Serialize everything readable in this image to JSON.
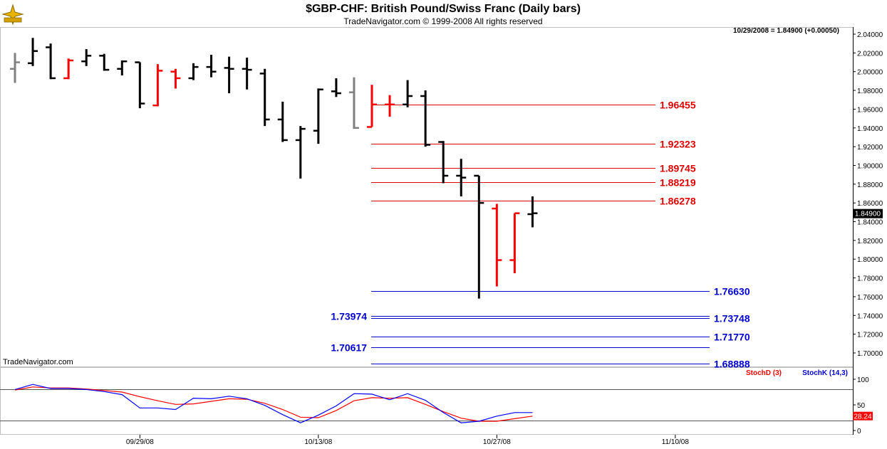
{
  "header": {
    "title": "$GBP-CHF:  British Pound/Swiss Franc  (Daily bars)",
    "subtitle": "TradeNavigator.com © 1999-2008 All rights reserved",
    "logo_icon": "gold-compass-logo-icon"
  },
  "readout": "10/29/2008 = 1.84900 (+0.00050)",
  "watermark": "TradeNavigator.com",
  "last_price_label": "1.84900",
  "stoch_value_label": "28.24",
  "colors": {
    "up": "#000000",
    "down": "#ff0000",
    "neutral": "#808080",
    "resistance": "#dd0000",
    "support": "#0000cc",
    "stoch_d": "#ff0000",
    "stoch_k": "#0000ff"
  },
  "chart_data": [
    {
      "type": "ohlc",
      "y_axis_ticks": [
        "2.04000",
        "2.02000",
        "2.00000",
        "1.98000",
        "1.96000",
        "1.94000",
        "1.92000",
        "1.90000",
        "1.88000",
        "1.86000",
        "1.84000",
        "1.82000",
        "1.80000",
        "1.78000",
        "1.76000",
        "1.74000",
        "1.72000",
        "1.70000"
      ],
      "ylim": [
        1.69,
        2.045
      ],
      "x_tick_labels": [
        {
          "label": "09/29/08",
          "bar": 7
        },
        {
          "label": "10/13/08",
          "bar": 17
        },
        {
          "label": "10/27/08",
          "bar": 27
        },
        {
          "label": "11/10/08",
          "bar": 37
        }
      ],
      "bars": [
        {
          "o": 2.003,
          "h": 2.02,
          "l": 1.988,
          "c": 2.01,
          "col": "neutral"
        },
        {
          "o": 2.009,
          "h": 2.036,
          "l": 2.006,
          "c": 2.022,
          "col": "up"
        },
        {
          "o": 2.026,
          "h": 2.03,
          "l": 1.992,
          "c": 1.993,
          "col": "up"
        },
        {
          "o": 1.993,
          "h": 2.014,
          "l": 1.992,
          "c": 2.012,
          "col": "down"
        },
        {
          "o": 2.011,
          "h": 2.024,
          "l": 2.006,
          "c": 2.017,
          "col": "up"
        },
        {
          "o": 2.017,
          "h": 2.019,
          "l": 2.001,
          "c": 2.002,
          "col": "up"
        },
        {
          "o": 2.003,
          "h": 2.012,
          "l": 1.996,
          "c": 2.011,
          "col": "up"
        },
        {
          "o": 2.01,
          "h": 2.01,
          "l": 1.961,
          "c": 1.966,
          "col": "up"
        },
        {
          "o": 1.964,
          "h": 2.008,
          "l": 1.963,
          "c": 2.001,
          "col": "down"
        },
        {
          "o": 2.0,
          "h": 2.003,
          "l": 1.982,
          "c": 1.993,
          "col": "down"
        },
        {
          "o": 1.993,
          "h": 2.009,
          "l": 1.991,
          "c": 2.005,
          "col": "up"
        },
        {
          "o": 2.005,
          "h": 2.018,
          "l": 1.994,
          "c": 2.0,
          "col": "up"
        },
        {
          "o": 2.004,
          "h": 2.016,
          "l": 1.977,
          "c": 2.003,
          "col": "up"
        },
        {
          "o": 2.003,
          "h": 2.015,
          "l": 1.981,
          "c": 2.002,
          "col": "up"
        },
        {
          "o": 1.998,
          "h": 2.003,
          "l": 1.942,
          "c": 1.949,
          "col": "up"
        },
        {
          "o": 1.949,
          "h": 1.968,
          "l": 1.925,
          "c": 1.927,
          "col": "up"
        },
        {
          "o": 1.927,
          "h": 1.942,
          "l": 1.886,
          "c": 1.939,
          "col": "up"
        },
        {
          "o": 1.937,
          "h": 1.982,
          "l": 1.923,
          "c": 1.981,
          "col": "up"
        },
        {
          "o": 1.979,
          "h": 1.993,
          "l": 1.973,
          "c": 1.977,
          "col": "up"
        },
        {
          "o": 1.978,
          "h": 1.994,
          "l": 1.939,
          "c": 1.94,
          "col": "neutral"
        },
        {
          "o": 1.941,
          "h": 1.986,
          "l": 1.941,
          "c": 1.965,
          "col": "down"
        },
        {
          "o": 1.965,
          "h": 1.975,
          "l": 1.952,
          "c": 1.965,
          "col": "down"
        },
        {
          "o": 1.965,
          "h": 1.991,
          "l": 1.962,
          "c": 1.974,
          "col": "up"
        },
        {
          "o": 1.974,
          "h": 1.98,
          "l": 1.92,
          "c": 1.922,
          "col": "up"
        },
        {
          "o": 1.925,
          "h": 1.926,
          "l": 1.881,
          "c": 1.889,
          "col": "up"
        },
        {
          "o": 1.889,
          "h": 1.907,
          "l": 1.867,
          "c": 1.887,
          "col": "up"
        },
        {
          "o": 1.889,
          "h": 1.889,
          "l": 1.758,
          "c": 1.86,
          "col": "up"
        },
        {
          "o": 1.854,
          "h": 1.859,
          "l": 1.771,
          "c": 1.799,
          "col": "down"
        },
        {
          "o": 1.799,
          "h": 1.849,
          "l": 1.785,
          "c": 1.849,
          "col": "down"
        },
        {
          "o": 1.848,
          "h": 1.867,
          "l": 1.834,
          "c": 1.849,
          "col": "up"
        }
      ],
      "levels": [
        {
          "value": 1.96455,
          "label": "1.96455",
          "kind": "resistance"
        },
        {
          "value": 1.92323,
          "label": "1.92323",
          "kind": "resistance"
        },
        {
          "value": 1.89745,
          "label": "1.89745",
          "kind": "resistance"
        },
        {
          "value": 1.88219,
          "label": "1.88219",
          "kind": "resistance"
        },
        {
          "value": 1.86278,
          "label": "1.86278",
          "kind": "resistance"
        },
        {
          "value": 1.7663,
          "label": "1.76630",
          "kind": "support"
        },
        {
          "value": 1.73974,
          "label": "1.73974",
          "kind": "support",
          "label_side": "left"
        },
        {
          "value": 1.73748,
          "label": "1.73748",
          "kind": "support"
        },
        {
          "value": 1.7177,
          "label": "1.71770",
          "kind": "support"
        },
        {
          "value": 1.70617,
          "label": "1.70617",
          "kind": "support",
          "label_side": "left"
        },
        {
          "value": 1.68888,
          "label": "1.68888",
          "kind": "support"
        }
      ],
      "last_price": 1.849
    },
    {
      "type": "line",
      "legend": [
        "StochD (3)",
        "StochK (14,3)"
      ],
      "y_axis_ticks": [
        "100",
        "50",
        "0"
      ],
      "ylim": [
        0,
        100
      ],
      "reference_lines": [
        80,
        20
      ],
      "series": [
        {
          "name": "StochD (3)",
          "values": [
            79,
            85,
            83,
            83,
            81,
            78,
            75,
            66,
            58,
            51,
            52,
            57,
            62,
            61,
            53,
            41,
            26,
            25,
            39,
            58,
            64,
            63,
            64,
            51,
            37,
            24,
            18,
            18,
            23,
            28
          ]
        },
        {
          "name": "StochK (14,3)",
          "values": [
            80,
            90,
            82,
            82,
            80,
            76,
            70,
            44,
            44,
            41,
            63,
            62,
            67,
            62,
            49,
            31,
            15,
            30,
            48,
            72,
            71,
            60,
            72,
            59,
            35,
            15,
            18,
            28,
            35,
            35
          ]
        }
      ],
      "last_value": 28.24
    }
  ]
}
